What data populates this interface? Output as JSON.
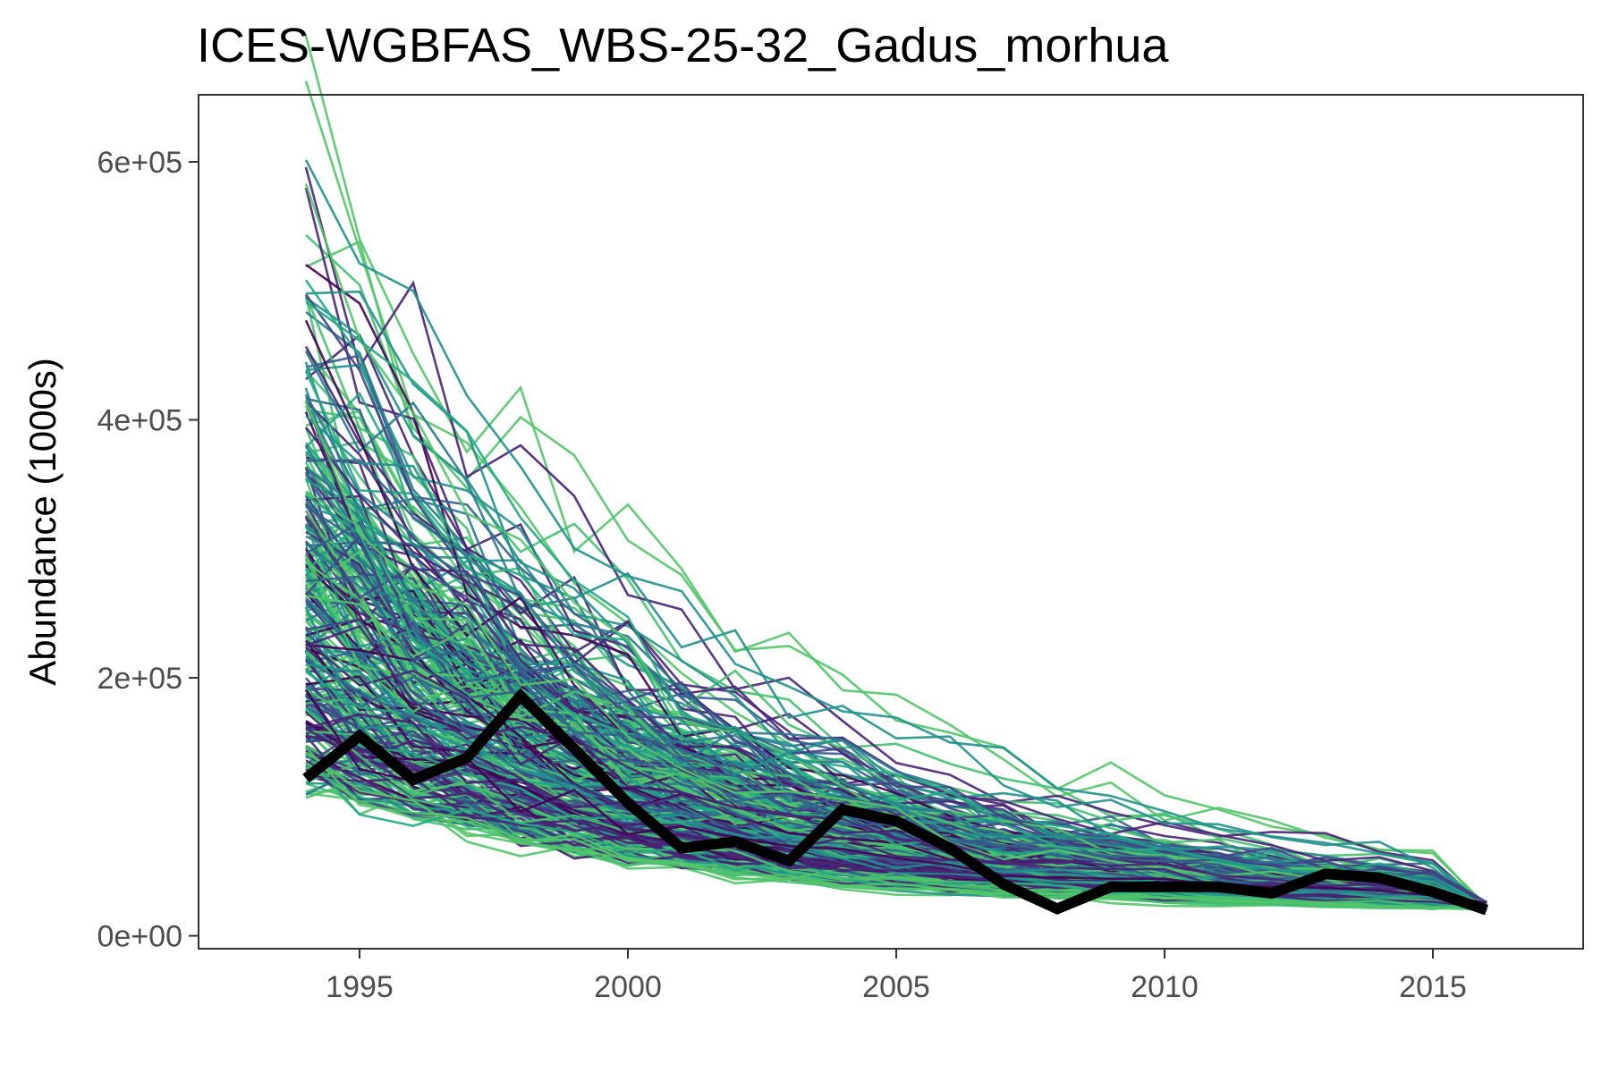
{
  "chart_data": {
    "type": "line",
    "title": "ICES-WGBFAS_WBS-25-32_Gadus_morhua",
    "xlabel": "",
    "ylabel": "Abundance (1000s)",
    "xlim": [
      1992.0,
      2017.8
    ],
    "ylim": [
      -10000,
      652000
    ],
    "x_ticks": [
      1995,
      2000,
      2005,
      2010,
      2015
    ],
    "x_tick_labels": [
      "1995",
      "2000",
      "2005",
      "2010",
      "2015"
    ],
    "y_ticks": [
      0,
      200000,
      400000,
      600000
    ],
    "y_tick_labels": [
      "0e+00",
      "2e+05",
      "4e+05",
      "6e+05"
    ],
    "grid": false,
    "ensemble": {
      "description_count": 320,
      "palette": [
        "#440154",
        "#482475",
        "#414487",
        "#355f8d",
        "#2a788e",
        "#21918c",
        "#22a884",
        "#44bf70",
        "#52c569"
      ],
      "min_start": 100000,
      "max_start": 620000,
      "typical_start": 230000,
      "end_value": 22000
    },
    "series": [
      {
        "name": "",
        "color": "#000000",
        "x": [
          1994,
          1995,
          1996,
          1997,
          1998,
          1999,
          2000,
          2001,
          2002,
          2003,
          2004,
          2005,
          2006,
          2007,
          2008,
          2009,
          2010,
          2011,
          2012,
          2013,
          2014,
          2015,
          2016
        ],
        "values": [
          122000,
          155000,
          121000,
          138000,
          186000,
          145000,
          103000,
          68000,
          73000,
          58000,
          98000,
          89000,
          68000,
          40000,
          21000,
          38000,
          38000,
          38000,
          33000,
          48000,
          45000,
          34000,
          20000
        ]
      }
    ]
  }
}
